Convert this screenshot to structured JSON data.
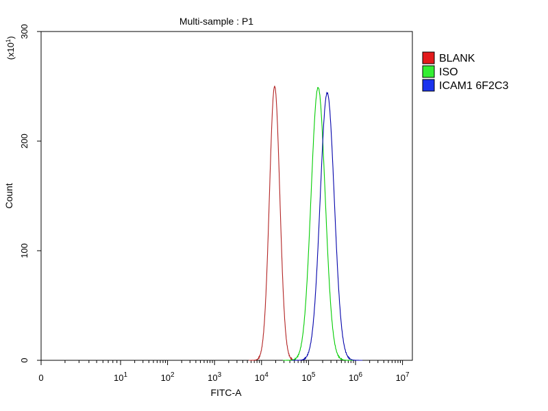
{
  "chart_data": {
    "type": "histogram",
    "title": "Multi-sample : P1",
    "xlabel": "FITC-A",
    "ylabel": "Count",
    "y_multiplier": "(x10",
    "y_multiplier_exp": "1",
    "y_multiplier_close": ")",
    "x_scale": "biexponential",
    "xlim": [
      0,
      10000000
    ],
    "ylim": [
      0,
      300
    ],
    "y_ticks": [
      0,
      100,
      200,
      300
    ],
    "y_tick_labels": [
      "0",
      "100",
      "200",
      "300"
    ],
    "x_ticks": [
      {
        "value": 0,
        "base": "0",
        "exp": ""
      },
      {
        "value": 10,
        "base": "10",
        "exp": "1"
      },
      {
        "value": 100,
        "base": "10",
        "exp": "2"
      },
      {
        "value": 1000,
        "base": "10",
        "exp": "3"
      },
      {
        "value": 10000,
        "base": "10",
        "exp": "4"
      },
      {
        "value": 100000,
        "base": "10",
        "exp": "5"
      },
      {
        "value": 1000000,
        "base": "10",
        "exp": "6"
      },
      {
        "value": 10000000,
        "base": "10",
        "exp": "7"
      }
    ],
    "legend_position": "right",
    "series": [
      {
        "name": "BLANK",
        "color": "#b22222",
        "legend_color": "#e31a1c",
        "peak_x": 19000,
        "peak_y": 250,
        "sigma_log": 0.11
      },
      {
        "name": "ISO",
        "color": "#00cc00",
        "legend_color": "#33ee33",
        "peak_x": 160000,
        "peak_y": 249,
        "sigma_log": 0.15
      },
      {
        "name": "ICAM1 6F2C3",
        "color": "#0000aa",
        "legend_color": "#1a33ee",
        "peak_x": 250000,
        "peak_y": 244,
        "sigma_log": 0.15
      }
    ]
  }
}
